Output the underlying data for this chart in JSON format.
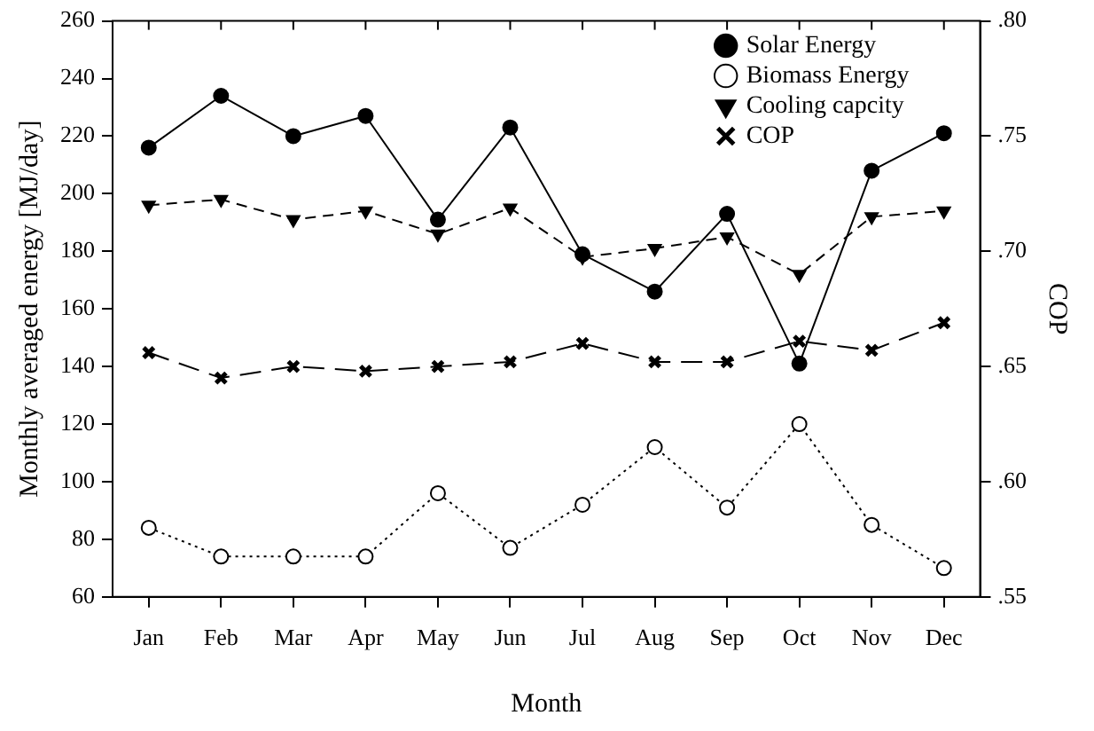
{
  "chart_data": {
    "type": "line",
    "xlabel": "Month",
    "ylabel": "Monthly averaged energy [MJ/day]",
    "y2label": "COP",
    "categories": [
      "Jan",
      "Feb",
      "Mar",
      "Apr",
      "May",
      "Jun",
      "Jul",
      "Aug",
      "Sep",
      "Oct",
      "Nov",
      "Dec"
    ],
    "series": [
      {
        "name": "Solar Energy",
        "color": "#000000",
        "marker": "circle",
        "line_style": "solid",
        "values": [
          216,
          234,
          220,
          227,
          191,
          223,
          179,
          166,
          193,
          141,
          208,
          221
        ]
      },
      {
        "name": "Biomass Energy",
        "color": "#000000",
        "marker": "circle_open",
        "line_style": "dotted",
        "values": [
          84,
          74,
          74,
          74,
          96,
          77,
          92,
          112,
          91,
          120,
          85,
          70
        ]
      },
      {
        "name": "Cooling capcity",
        "color": "#000000",
        "marker": "triangle_down",
        "line_style": "dashed",
        "values": [
          196,
          198,
          191,
          194,
          186,
          195,
          178,
          181,
          185,
          172,
          192,
          194
        ]
      },
      {
        "name": "COP",
        "color": "#000000",
        "marker": "cross",
        "line_style": "longdash",
        "axis": "y2",
        "values": [
          0.656,
          0.645,
          0.65,
          0.648,
          0.65,
          0.652,
          0.66,
          0.652,
          0.652,
          0.661,
          0.657,
          0.669
        ]
      }
    ],
    "ylim": [
      60,
      260
    ],
    "yticks": [
      60,
      80,
      100,
      120,
      140,
      160,
      180,
      200,
      220,
      240,
      260
    ],
    "y2lim": [
      0.55,
      0.8
    ],
    "y2ticks": [
      {
        "value": 0.55,
        "label": ".55"
      },
      {
        "value": 0.6,
        "label": ".60"
      },
      {
        "value": 0.65,
        "label": ".65"
      },
      {
        "value": 0.7,
        "label": ".70"
      },
      {
        "value": 0.75,
        "label": ".75"
      },
      {
        "value": 0.8,
        "label": ".80"
      }
    ],
    "grid": false,
    "legend": "top right"
  }
}
